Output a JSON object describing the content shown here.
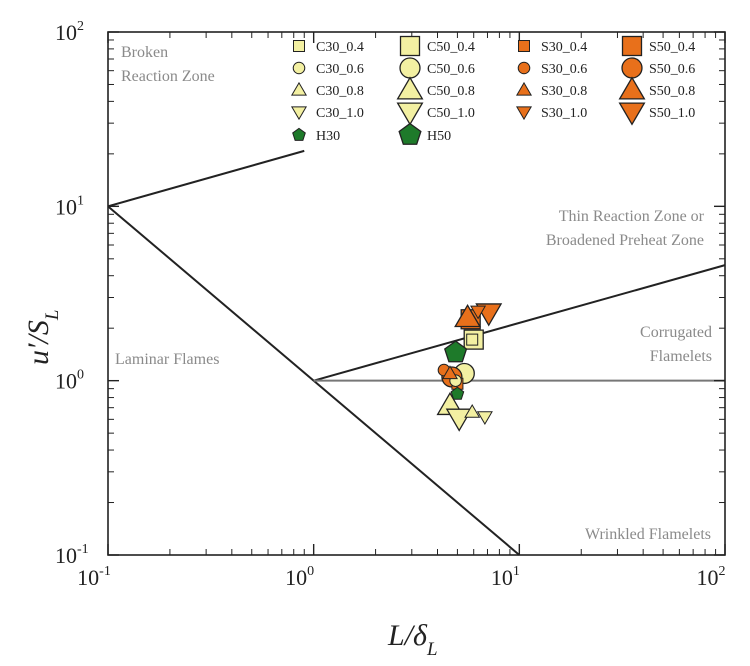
{
  "chart_data": {
    "type": "scatter",
    "title": "",
    "xlabel": {
      "main": "L/δ",
      "sub": "L"
    },
    "ylabel": {
      "main": "u′/S",
      "sub": "L"
    },
    "xscale": "log",
    "yscale": "log",
    "xlim": [
      0.1,
      100
    ],
    "ylim": [
      0.1,
      100
    ],
    "x_ticks": [
      {
        "value": 0.1,
        "base": "10",
        "exp": "-1"
      },
      {
        "value": 1,
        "base": "10",
        "exp": "0"
      },
      {
        "value": 10,
        "base": "10",
        "exp": "1"
      },
      {
        "value": 100,
        "base": "10",
        "exp": "2"
      }
    ],
    "y_ticks": [
      {
        "value": 0.1,
        "base": "10",
        "exp": "-1"
      },
      {
        "value": 1,
        "base": "10",
        "exp": "0"
      },
      {
        "value": 10,
        "base": "10",
        "exp": "1"
      },
      {
        "value": 100,
        "base": "10",
        "exp": "2"
      }
    ],
    "grid": false,
    "legend_position": "top-right",
    "regime_lines": [
      {
        "x": [
          0.1,
          0.9
        ],
        "y": [
          10,
          20.8
        ]
      },
      {
        "x": [
          0.1,
          10
        ],
        "y": [
          10,
          0.1
        ]
      },
      {
        "x": [
          1,
          100
        ],
        "y": [
          1,
          4.6
        ]
      },
      {
        "x": [
          1,
          100
        ],
        "y": [
          1,
          1
        ]
      }
    ],
    "regions": [
      {
        "lines": [
          "Broken",
          "Reaction Zone"
        ]
      },
      {
        "lines": [
          "Thin Reaction Zone or",
          "Broadened Preheat Zone"
        ]
      },
      {
        "lines": [
          "Corrugated",
          "Flamelets"
        ]
      },
      {
        "lines": [
          "Laminar Flames"
        ]
      },
      {
        "lines": [
          "Wrinkled Flamelets"
        ]
      }
    ],
    "colors": {
      "C": "#f3f0a2",
      "S": "#e8701b",
      "H": "#1e7a2a",
      "outline": "#222222"
    },
    "series": [
      {
        "name": "C30_0.4",
        "marker": "square",
        "size": "small",
        "color": "#f3f0a2",
        "points": [
          [
            5.9,
            1.72
          ]
        ]
      },
      {
        "name": "C50_0.4",
        "marker": "square",
        "size": "large",
        "color": "#f3f0a2",
        "points": [
          [
            6.0,
            1.72
          ]
        ]
      },
      {
        "name": "S30_0.4",
        "marker": "square",
        "size": "small",
        "color": "#e8701b",
        "points": [
          [
            5.0,
            0.96
          ]
        ]
      },
      {
        "name": "S50_0.4",
        "marker": "square",
        "size": "large",
        "color": "#e8701b",
        "points": [
          [
            5.8,
            2.25
          ]
        ]
      },
      {
        "name": "C30_0.6",
        "marker": "circle",
        "size": "small",
        "color": "#f3f0a2",
        "points": [
          [
            4.9,
            1.0
          ]
        ]
      },
      {
        "name": "C50_0.6",
        "marker": "circle",
        "size": "large",
        "color": "#f3f0a2",
        "points": [
          [
            5.4,
            1.1
          ]
        ]
      },
      {
        "name": "S30_0.6",
        "marker": "circle",
        "size": "small",
        "color": "#e8701b",
        "points": [
          [
            4.3,
            1.15
          ]
        ]
      },
      {
        "name": "S50_0.6",
        "marker": "circle",
        "size": "large",
        "color": "#e8701b",
        "points": [
          [
            4.7,
            1.05
          ]
        ]
      },
      {
        "name": "C30_0.8",
        "marker": "triangle-up",
        "size": "small",
        "color": "#f3f0a2",
        "points": [
          [
            5.9,
            0.66
          ]
        ]
      },
      {
        "name": "C50_0.8",
        "marker": "triangle-up",
        "size": "large",
        "color": "#f3f0a2",
        "points": [
          [
            4.6,
            0.72
          ]
        ]
      },
      {
        "name": "S30_0.8",
        "marker": "triangle-up",
        "size": "small",
        "color": "#e8701b",
        "points": [
          [
            4.6,
            1.1
          ]
        ]
      },
      {
        "name": "S50_0.8",
        "marker": "triangle-up",
        "size": "large",
        "color": "#e8701b",
        "points": [
          [
            5.6,
            2.3
          ]
        ]
      },
      {
        "name": "C30_1.0",
        "marker": "triangle-down",
        "size": "small",
        "color": "#f3f0a2",
        "points": [
          [
            6.8,
            0.62
          ]
        ]
      },
      {
        "name": "C50_1.0",
        "marker": "triangle-down",
        "size": "large",
        "color": "#f3f0a2",
        "points": [
          [
            5.1,
            0.61
          ]
        ]
      },
      {
        "name": "S30_1.0",
        "marker": "triangle-down",
        "size": "small",
        "color": "#e8701b",
        "points": [
          [
            6.3,
            2.5
          ]
        ]
      },
      {
        "name": "S50_1.0",
        "marker": "triangle-down",
        "size": "large",
        "color": "#e8701b",
        "points": [
          [
            7.1,
            2.45
          ]
        ]
      },
      {
        "name": "H30",
        "marker": "pentagon",
        "size": "small",
        "color": "#1e7a2a",
        "points": [
          [
            5.0,
            0.84
          ]
        ]
      },
      {
        "name": "H50",
        "marker": "pentagon",
        "size": "large",
        "color": "#1e7a2a",
        "points": [
          [
            4.9,
            1.45
          ]
        ]
      }
    ],
    "legend_order": [
      "C30_0.4",
      "C50_0.4",
      "S30_0.4",
      "S50_0.4",
      "C30_0.6",
      "C50_0.6",
      "S30_0.6",
      "S50_0.6",
      "C30_0.8",
      "C50_0.8",
      "S30_0.8",
      "S50_0.8",
      "C30_1.0",
      "C50_1.0",
      "S30_1.0",
      "S50_1.0",
      "H30",
      "H50"
    ]
  }
}
